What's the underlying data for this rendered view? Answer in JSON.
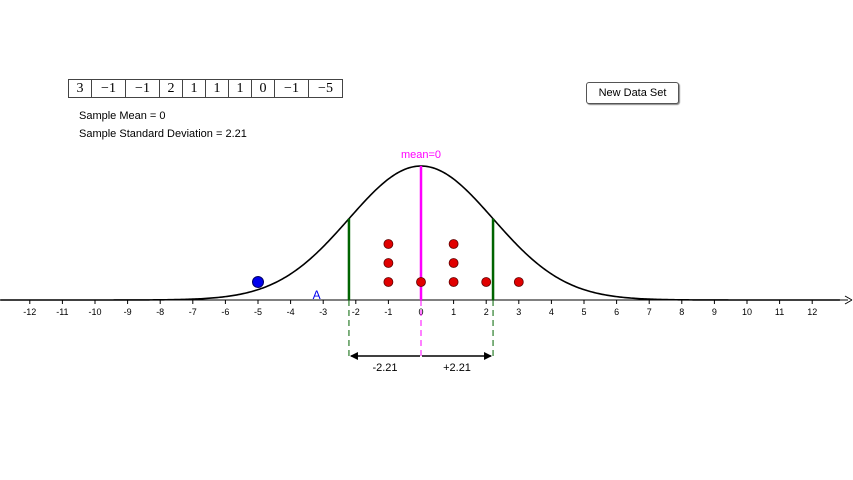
{
  "dataset": [
    "3",
    "−1",
    "−1",
    "2",
    "1",
    "1",
    "1",
    "0",
    "−1",
    "−5"
  ],
  "stats": {
    "mean_label": "Sample Mean = 0",
    "sd_label": "Sample Standard Deviation = 2.21"
  },
  "new_data_button": "New Data Set",
  "plot": {
    "mean_label": "mean=0",
    "minus_sd_label": "-2.21",
    "plus_sd_label": "+2.21",
    "point_label": "A",
    "mean": 0,
    "sd": 2.21,
    "x_ticks": [
      "-12",
      "-11",
      "-10",
      "-9",
      "-8",
      "-7",
      "-6",
      "-5",
      "-4",
      "-3",
      "-2",
      "-1",
      "0",
      "1",
      "2",
      "3",
      "4",
      "5",
      "6",
      "7",
      "8",
      "9",
      "10",
      "11",
      "12"
    ],
    "dots": [
      {
        "x": -1,
        "level": 1
      },
      {
        "x": -1,
        "level": 2
      },
      {
        "x": -1,
        "level": 3
      },
      {
        "x": 0,
        "level": 1
      },
      {
        "x": 1,
        "level": 1
      },
      {
        "x": 1,
        "level": 2
      },
      {
        "x": 1,
        "level": 3
      },
      {
        "x": 2,
        "level": 1
      },
      {
        "x": 3,
        "level": 1
      }
    ],
    "point_a_x": -5,
    "colors": {
      "dot": "#e00000",
      "point_a": "#0000ee",
      "mean_line": "#ff00ff",
      "sd_line": "#006400",
      "curve": "#000000"
    }
  }
}
